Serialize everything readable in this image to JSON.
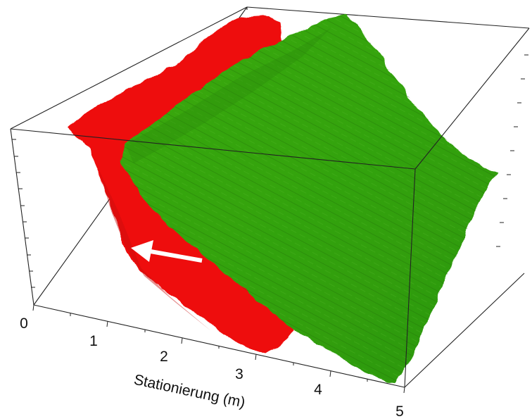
{
  "figure": {
    "axis_x": {
      "label": "Stationierung (m)",
      "ticks": [
        "0",
        "1",
        "2",
        "3",
        "4",
        "5"
      ]
    },
    "colors": {
      "surface_a": "#ee1111",
      "surface_b": "#33a30f",
      "arrow": "#ffffff",
      "frame": "#222222"
    }
  }
}
